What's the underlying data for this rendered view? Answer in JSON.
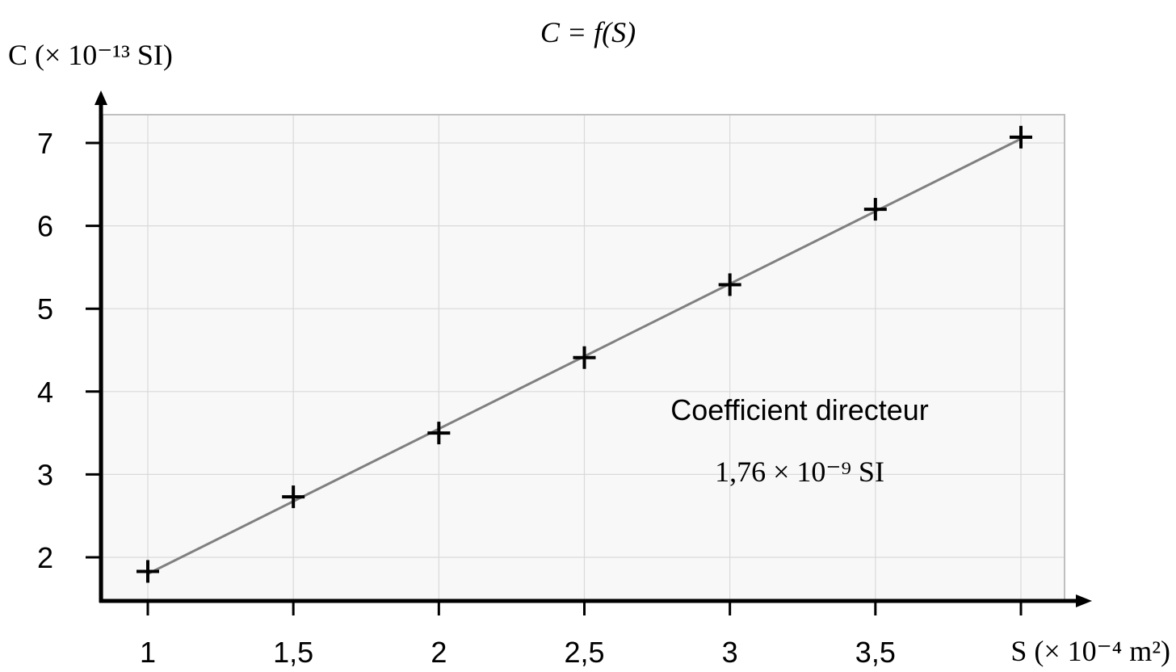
{
  "chart_data": {
    "type": "scatter",
    "title": "C = f(S)",
    "ylabel": "C (× 10⁻¹³ SI)",
    "xlabel": "S (× 10⁻⁴ m²)",
    "xlim": [
      0.85,
      4.15
    ],
    "ylim": [
      1.45,
      7.35
    ],
    "x_ticks": [
      1,
      1.5,
      2,
      2.5,
      3,
      3.5,
      4
    ],
    "x_tick_labels": [
      "1",
      "1,5",
      "2",
      "2,5",
      "3",
      "3,5",
      ""
    ],
    "y_ticks": [
      2,
      3,
      4,
      5,
      6,
      7
    ],
    "y_tick_labels": [
      "2",
      "3",
      "4",
      "5",
      "6",
      "7"
    ],
    "grid": true,
    "series": [
      {
        "points": [
          {
            "x": 1.0,
            "y": 1.83
          },
          {
            "x": 1.5,
            "y": 2.73
          },
          {
            "x": 2.0,
            "y": 3.5
          },
          {
            "x": 2.5,
            "y": 4.41
          },
          {
            "x": 3.0,
            "y": 5.29
          },
          {
            "x": 3.5,
            "y": 6.2
          },
          {
            "x": 4.0,
            "y": 7.07
          }
        ],
        "marker": "+"
      }
    ],
    "fit_line": {
      "x1": 1.0,
      "y1": 1.8,
      "x2": 4.0,
      "y2": 7.05
    },
    "annotation": {
      "title": "Coefficient directeur",
      "value": "1,76 × 10⁻⁹ SI"
    },
    "colors": {
      "plot_background": "#f8f8f8",
      "grid": "#d9d9d9",
      "border": "#bfbfbf",
      "line": "#808080",
      "axis": "#000000"
    }
  }
}
